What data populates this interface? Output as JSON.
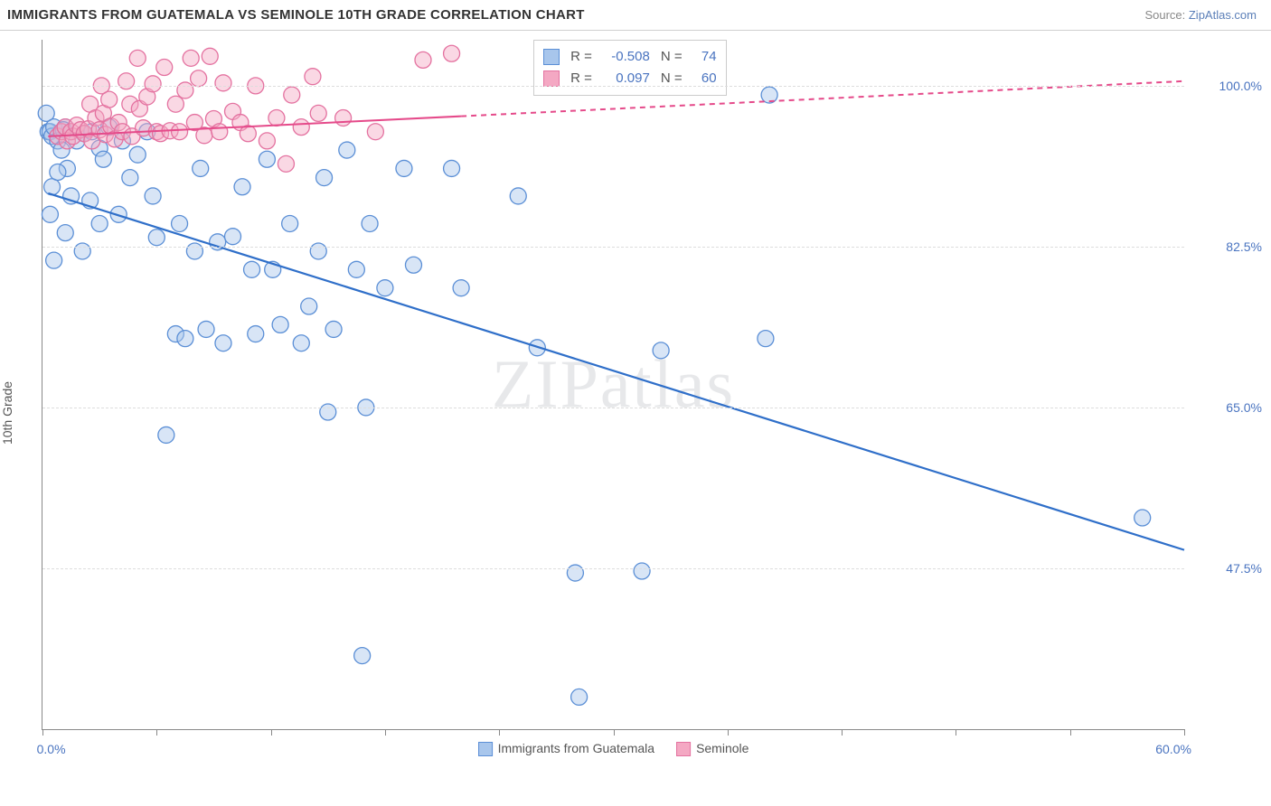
{
  "header": {
    "title": "IMMIGRANTS FROM GUATEMALA VS SEMINOLE 10TH GRADE CORRELATION CHART",
    "source_prefix": "Source: ",
    "source_link": "ZipAtlas.com"
  },
  "chart": {
    "type": "scatter",
    "y_axis_label": "10th Grade",
    "watermark": "ZIPatlas",
    "xlim": [
      0,
      60
    ],
    "ylim": [
      30,
      105
    ],
    "x_min_label": "0.0%",
    "x_max_label": "60.0%",
    "x_ticks": [
      0,
      6,
      12,
      18,
      24,
      30,
      36,
      42,
      48,
      54,
      60
    ],
    "y_gridlines": [
      47.5,
      65.0,
      82.5,
      100.0
    ],
    "y_tick_labels": [
      "47.5%",
      "65.0%",
      "82.5%",
      "100.0%"
    ],
    "background_color": "#ffffff",
    "grid_color": "#dddddd",
    "axis_color": "#888888",
    "marker_radius": 9,
    "marker_stroke_width": 1.3,
    "series": [
      {
        "name": "Immigrants from Guatemala",
        "fill": "#a8c6ec",
        "fill_opacity": 0.45,
        "stroke": "#5b8fd6",
        "trend_color": "#2f6fc9",
        "trend_width": 2.2,
        "trend_start": [
          0.3,
          88.3
        ],
        "trend_end": [
          60,
          49.5
        ],
        "trend_dashed_from_x": null,
        "r": "-0.508",
        "n": "74",
        "points": [
          [
            0.2,
            97
          ],
          [
            0.3,
            95
          ],
          [
            0.4,
            95
          ],
          [
            0.5,
            94.5
          ],
          [
            0.6,
            95.5
          ],
          [
            0.8,
            94
          ],
          [
            1,
            93
          ],
          [
            1.2,
            95.5
          ],
          [
            1.3,
            91
          ],
          [
            0.5,
            89
          ],
          [
            0.8,
            90.6
          ],
          [
            0.4,
            86
          ],
          [
            1.8,
            94
          ],
          [
            0.6,
            81
          ],
          [
            1.1,
            95.2
          ],
          [
            2.2,
            94.8
          ],
          [
            1.5,
            88
          ],
          [
            1.2,
            84
          ],
          [
            2.1,
            82
          ],
          [
            2.6,
            95
          ],
          [
            2.5,
            87.5
          ],
          [
            3,
            93.2
          ],
          [
            3.2,
            92
          ],
          [
            3,
            85
          ],
          [
            3.5,
            95.5
          ],
          [
            4,
            86
          ],
          [
            4.2,
            94
          ],
          [
            4.6,
            90
          ],
          [
            5,
            92.5
          ],
          [
            5.5,
            95
          ],
          [
            5.8,
            88
          ],
          [
            6,
            83.5
          ],
          [
            6.5,
            62
          ],
          [
            7,
            73
          ],
          [
            7.2,
            85
          ],
          [
            7.5,
            72.5
          ],
          [
            8,
            82
          ],
          [
            8.3,
            91
          ],
          [
            8.6,
            73.5
          ],
          [
            9.2,
            83
          ],
          [
            9.5,
            72
          ],
          [
            10,
            83.6
          ],
          [
            10.5,
            89
          ],
          [
            11,
            80
          ],
          [
            11.2,
            73
          ],
          [
            11.8,
            92
          ],
          [
            12.1,
            80
          ],
          [
            12.5,
            74
          ],
          [
            13,
            85
          ],
          [
            13.6,
            72
          ],
          [
            14,
            76
          ],
          [
            14.5,
            82
          ],
          [
            14.8,
            90
          ],
          [
            15,
            64.5
          ],
          [
            15.3,
            73.5
          ],
          [
            16,
            93
          ],
          [
            16.5,
            80
          ],
          [
            16.8,
            38
          ],
          [
            17,
            65
          ],
          [
            17.2,
            85
          ],
          [
            18,
            78
          ],
          [
            19,
            91
          ],
          [
            19.5,
            80.5
          ],
          [
            21.5,
            91
          ],
          [
            22,
            78
          ],
          [
            25,
            88
          ],
          [
            26,
            71.5
          ],
          [
            28,
            47
          ],
          [
            28.2,
            33.5
          ],
          [
            31.5,
            47.2
          ],
          [
            32.5,
            71.2
          ],
          [
            38,
            72.5
          ],
          [
            38.2,
            99
          ],
          [
            57.8,
            53
          ]
        ]
      },
      {
        "name": "Seminole",
        "fill": "#f4a8c3",
        "fill_opacity": 0.45,
        "stroke": "#e472a0",
        "trend_color": "#e54a8a",
        "trend_width": 2,
        "trend_start": [
          0.3,
          94.5
        ],
        "trend_end": [
          60,
          100.5
        ],
        "trend_dashed_from_x": 22,
        "r": "0.097",
        "n": "60",
        "points": [
          [
            0.8,
            94.5
          ],
          [
            1,
            95
          ],
          [
            1.2,
            95.5
          ],
          [
            1.3,
            94
          ],
          [
            1.5,
            95
          ],
          [
            1.6,
            94.5
          ],
          [
            1.8,
            95.7
          ],
          [
            2,
            95.2
          ],
          [
            2.2,
            94.8
          ],
          [
            2.4,
            95.3
          ],
          [
            2.5,
            98
          ],
          [
            2.6,
            94
          ],
          [
            2.8,
            96.5
          ],
          [
            3,
            95.2
          ],
          [
            3.1,
            100
          ],
          [
            3.2,
            97
          ],
          [
            3.3,
            94.7
          ],
          [
            3.5,
            98.5
          ],
          [
            3.6,
            95.6
          ],
          [
            3.8,
            94.2
          ],
          [
            4,
            96
          ],
          [
            4.2,
            95
          ],
          [
            4.4,
            100.5
          ],
          [
            4.6,
            98
          ],
          [
            4.7,
            94.5
          ],
          [
            5,
            103
          ],
          [
            5.1,
            97.5
          ],
          [
            5.3,
            95.4
          ],
          [
            5.5,
            98.8
          ],
          [
            5.8,
            100.2
          ],
          [
            6,
            95
          ],
          [
            6.2,
            94.8
          ],
          [
            6.4,
            102
          ],
          [
            6.7,
            95.1
          ],
          [
            7,
            98
          ],
          [
            7.2,
            95
          ],
          [
            7.5,
            99.5
          ],
          [
            7.8,
            103
          ],
          [
            8,
            96
          ],
          [
            8.2,
            100.8
          ],
          [
            8.5,
            94.6
          ],
          [
            8.8,
            103.2
          ],
          [
            9,
            96.4
          ],
          [
            9.3,
            95
          ],
          [
            9.5,
            100.3
          ],
          [
            10,
            97.2
          ],
          [
            10.4,
            96
          ],
          [
            10.8,
            94.8
          ],
          [
            11.2,
            100
          ],
          [
            11.8,
            94
          ],
          [
            12.3,
            96.5
          ],
          [
            12.8,
            91.5
          ],
          [
            13.1,
            99
          ],
          [
            13.6,
            95.5
          ],
          [
            14.2,
            101
          ],
          [
            14.5,
            97
          ],
          [
            15.8,
            96.5
          ],
          [
            17.5,
            95
          ],
          [
            20,
            102.8
          ],
          [
            21.5,
            103.5
          ]
        ]
      }
    ],
    "legend_items": [
      {
        "label": "Immigrants from Guatemala",
        "fill": "#a8c6ec",
        "stroke": "#5b8fd6"
      },
      {
        "label": "Seminole",
        "fill": "#f4a8c3",
        "stroke": "#e472a0"
      }
    ],
    "stats_box": {
      "r_label": "R =",
      "n_label": "N ="
    }
  }
}
